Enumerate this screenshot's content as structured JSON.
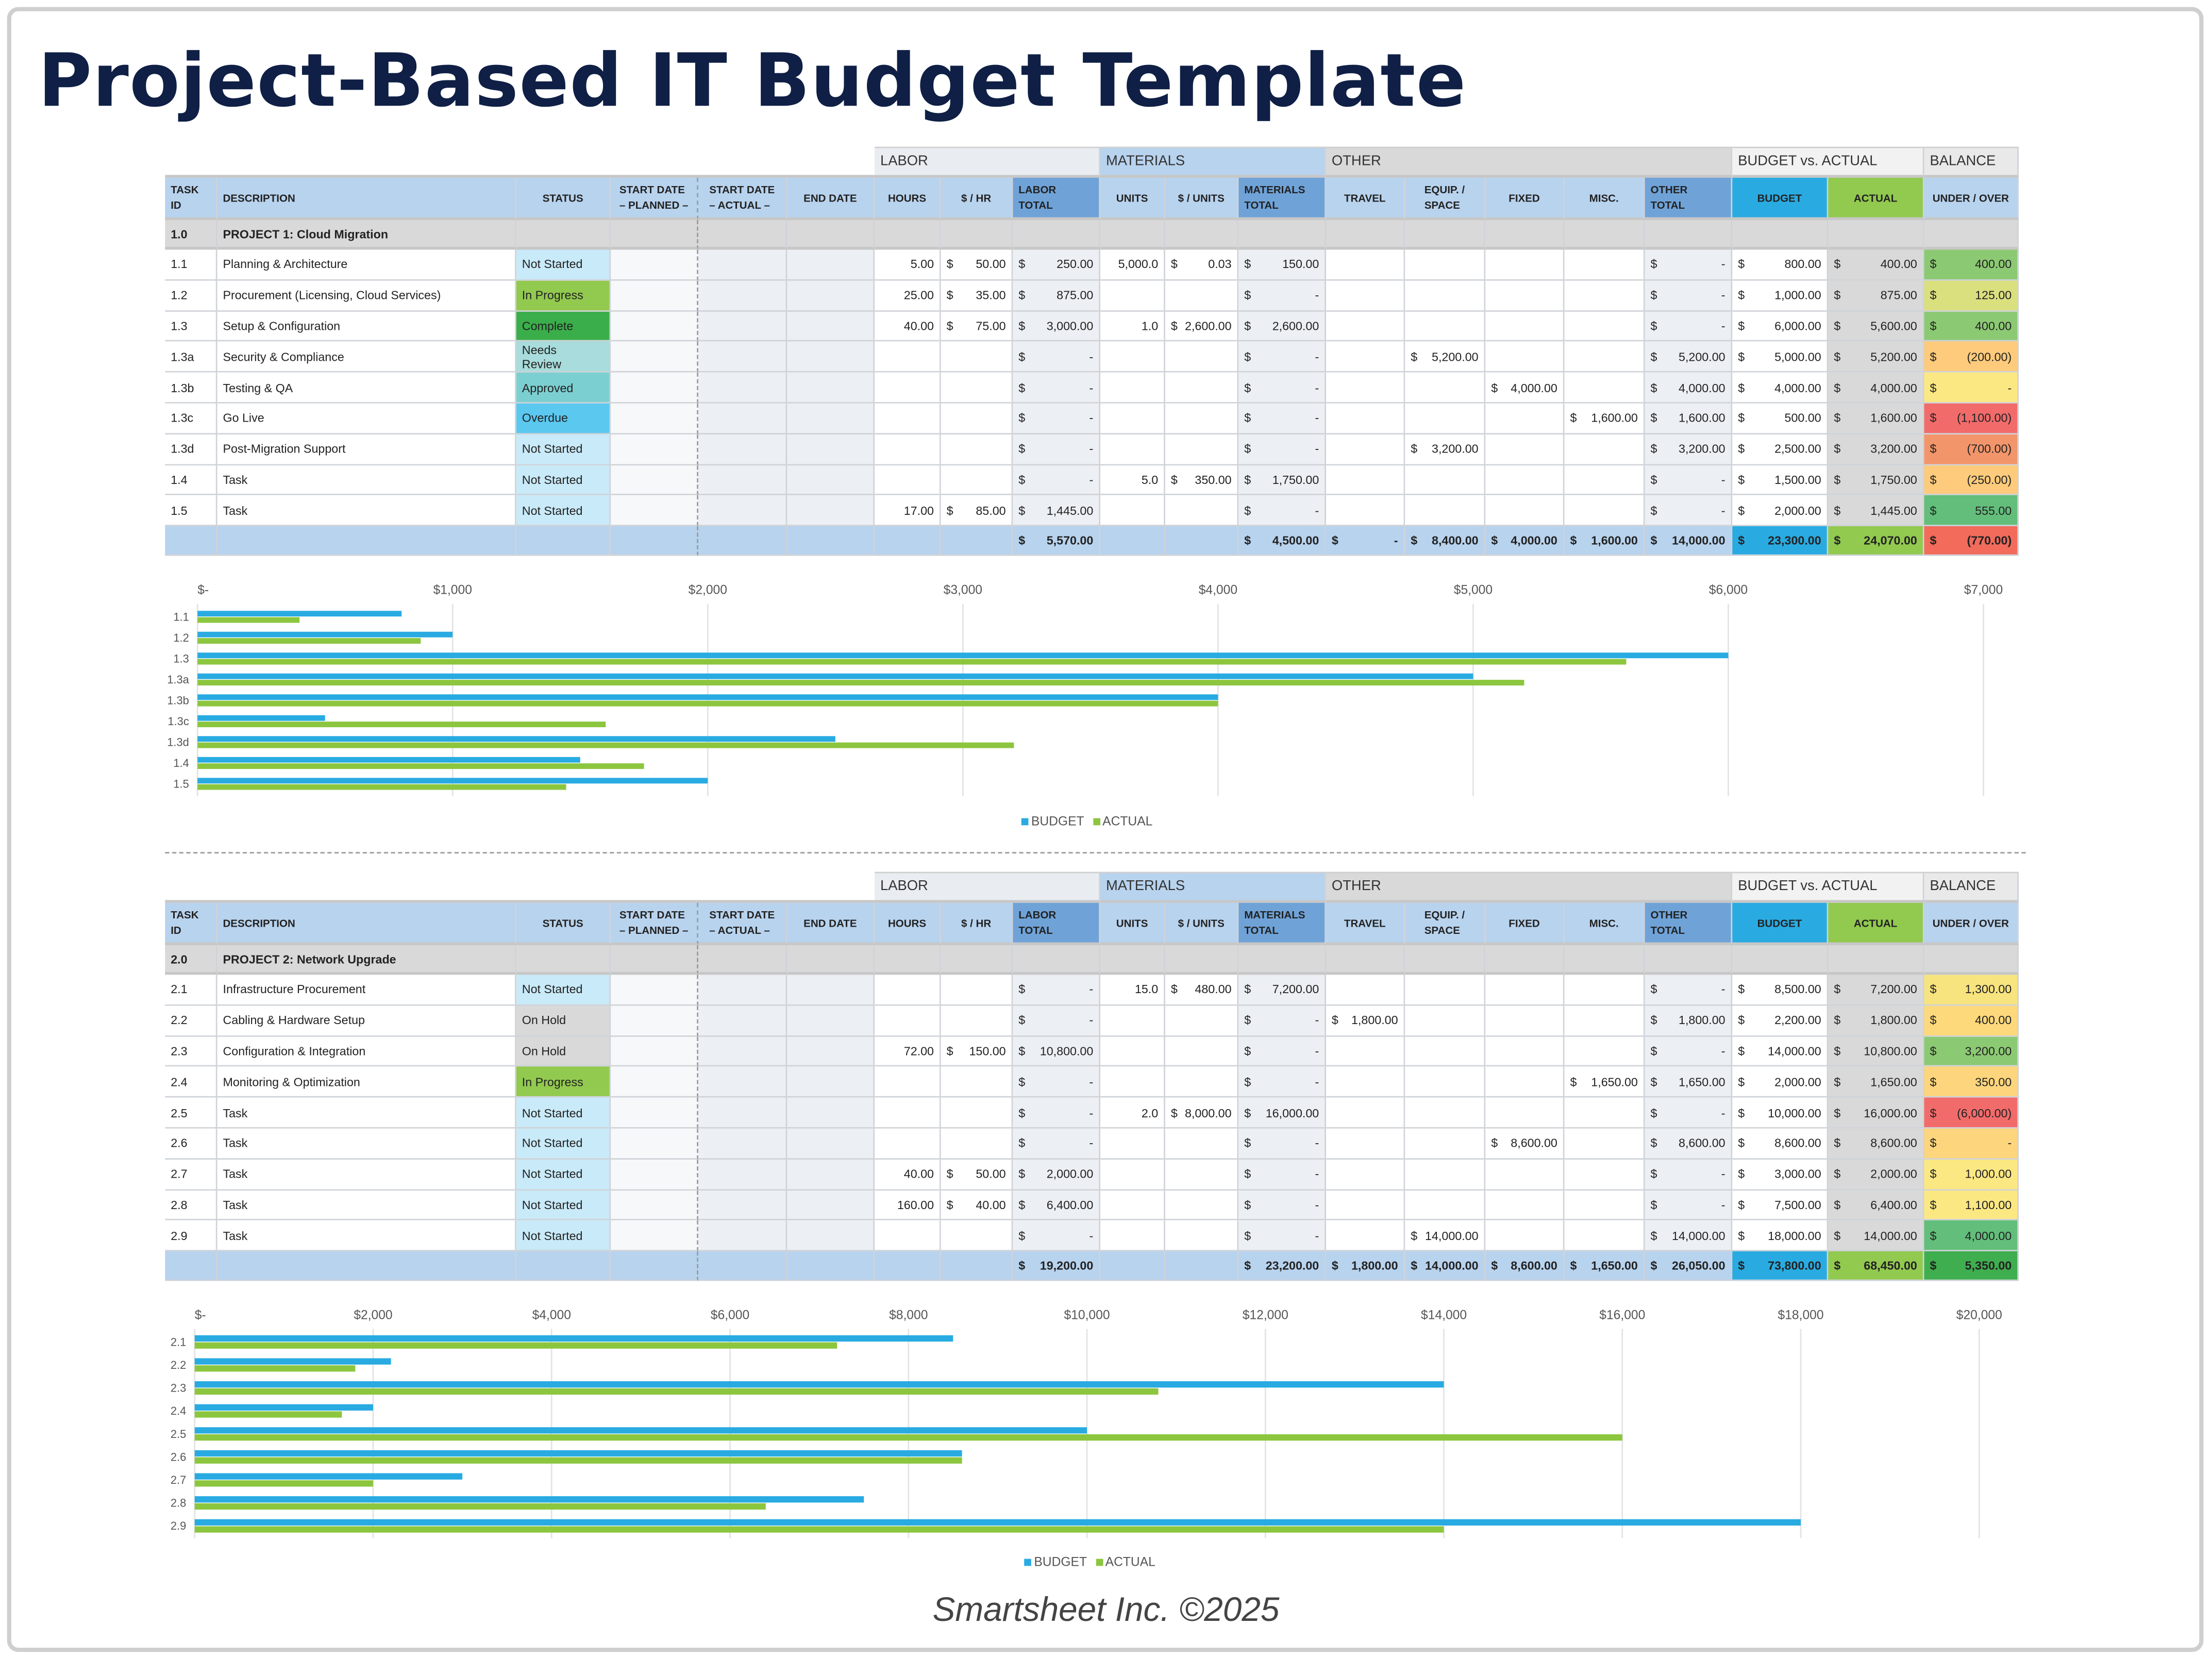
{
  "title": "Project-Based IT Budget Template",
  "footer": "Smartsheet Inc. ©2025",
  "groups": [
    {
      "label": "LABOR",
      "span": [
        6,
        9
      ],
      "color": "#e9edf2"
    },
    {
      "label": "MATERIALS",
      "span": [
        9,
        12
      ],
      "color": "#b8d3ee"
    },
    {
      "label": "OTHER",
      "span": [
        12,
        17
      ],
      "color": "#d9d9d9"
    },
    {
      "label": "BUDGET vs. ACTUAL",
      "span": [
        17,
        19
      ],
      "color": "#f2f2f2"
    },
    {
      "label": "BALANCE",
      "span": [
        19,
        20
      ],
      "color": "#e9e9e9"
    }
  ],
  "columns": [
    "TASK\nID",
    "DESCRIPTION",
    "STATUS",
    "START DATE\n– PLANNED –",
    "START DATE\n– ACTUAL –",
    "END DATE",
    "HOURS",
    "$ / HR",
    "LABOR\nTOTAL",
    "UNITS",
    "$ / UNITS",
    "MATERIALS\nTOTAL",
    "TRAVEL",
    "EQUIP. /\nSPACE",
    "FIXED",
    "MISC.",
    "OTHER\nTOTAL",
    "BUDGET",
    "ACTUAL",
    "UNDER / OVER"
  ],
  "colors": {
    "header": "#b8d3ee",
    "total_header": "#6fa3d8",
    "budget": "#29abe2",
    "actual": "#92c94f",
    "status": {
      "Not Started": "#c9eaf8",
      "In Progress": "#92c94f",
      "Complete": "#3aae4a",
      "Needs Review": "#a9dcdc",
      "Approved": "#7ccfd1",
      "Overdue": "#5bc8f0",
      "On Hold": "#d9d9d9"
    }
  },
  "projects": [
    {
      "id": "1.0",
      "name": "PROJECT 1: Cloud Migration",
      "rows": [
        [
          "1.1",
          "Planning & Architecture",
          "Not Started",
          "",
          "",
          "",
          "5.00",
          "50.00",
          "250.00",
          "5,000.0",
          "0.03",
          "150.00",
          "",
          "",
          "",
          "",
          "-",
          "800.00",
          "400.00",
          "400.00"
        ],
        [
          "1.2",
          "Procurement (Licensing, Cloud Services)",
          "In Progress",
          "",
          "",
          "",
          "25.00",
          "35.00",
          "875.00",
          "",
          "",
          "-",
          "",
          "",
          "",
          "",
          "-",
          "1,000.00",
          "875.00",
          "125.00"
        ],
        [
          "1.3",
          "Setup & Configuration",
          "Complete",
          "",
          "",
          "",
          "40.00",
          "75.00",
          "3,000.00",
          "1.0",
          "2,600.00",
          "2,600.00",
          "",
          "",
          "",
          "",
          "-",
          "6,000.00",
          "5,600.00",
          "400.00"
        ],
        [
          "1.3a",
          "Security & Compliance",
          "Needs Review",
          "",
          "",
          "",
          "",
          "",
          "-",
          "",
          "",
          "-",
          "",
          "5,200.00",
          "",
          "",
          "5,200.00",
          "5,000.00",
          "5,200.00",
          "(200.00)"
        ],
        [
          "1.3b",
          "Testing & QA",
          "Approved",
          "",
          "",
          "",
          "",
          "",
          "-",
          "",
          "",
          "-",
          "",
          "",
          "4,000.00",
          "",
          "4,000.00",
          "4,000.00",
          "4,000.00",
          "-"
        ],
        [
          "1.3c",
          "Go Live",
          "Overdue",
          "",
          "",
          "",
          "",
          "",
          "-",
          "",
          "",
          "-",
          "",
          "",
          "",
          "1,600.00",
          "1,600.00",
          "500.00",
          "1,600.00",
          "(1,100.00)"
        ],
        [
          "1.3d",
          "Post-Migration Support",
          "Not Started",
          "",
          "",
          "",
          "",
          "",
          "-",
          "",
          "",
          "-",
          "",
          "3,200.00",
          "",
          "",
          "3,200.00",
          "2,500.00",
          "3,200.00",
          "(700.00)"
        ],
        [
          "1.4",
          "Task",
          "Not Started",
          "",
          "",
          "",
          "",
          "",
          "-",
          "5.0",
          "350.00",
          "1,750.00",
          "",
          "",
          "",
          "",
          "-",
          "1,500.00",
          "1,750.00",
          "(250.00)"
        ],
        [
          "1.5",
          "Task",
          "Not Started",
          "",
          "",
          "",
          "17.00",
          "85.00",
          "1,445.00",
          "",
          "",
          "-",
          "",
          "",
          "",
          "",
          "-",
          "2,000.00",
          "1,445.00",
          "555.00"
        ]
      ],
      "balance_colors": [
        "#8cc973",
        "#dbe07f",
        "#8cc973",
        "#fdcb7b",
        "#fce883",
        "#f26b6b",
        "#f3956b",
        "#fdcb7b",
        "#63be7b"
      ],
      "totals": [
        "",
        "",
        "",
        "",
        "",
        "",
        "",
        "",
        "5,570.00",
        "",
        "",
        "4,500.00",
        "-",
        "8,400.00",
        "4,000.00",
        "1,600.00",
        "14,000.00",
        "23,300.00",
        "24,070.00",
        "(770.00)"
      ],
      "total_balance_color": "#f26b5b"
    },
    {
      "id": "2.0",
      "name": "PROJECT 2: Network Upgrade",
      "rows": [
        [
          "2.1",
          "Infrastructure Procurement",
          "Not Started",
          "",
          "",
          "",
          "",
          "",
          "-",
          "15.0",
          "480.00",
          "7,200.00",
          "",
          "",
          "",
          "",
          "-",
          "8,500.00",
          "7,200.00",
          "1,300.00"
        ],
        [
          "2.2",
          "Cabling & Hardware Setup",
          "On Hold",
          "",
          "",
          "",
          "",
          "",
          "-",
          "",
          "",
          "-",
          "1,800.00",
          "",
          "",
          "",
          "1,800.00",
          "2,200.00",
          "1,800.00",
          "400.00"
        ],
        [
          "2.3",
          "Configuration & Integration",
          "On Hold",
          "",
          "",
          "",
          "72.00",
          "150.00",
          "10,800.00",
          "",
          "",
          "-",
          "",
          "",
          "",
          "",
          "-",
          "14,000.00",
          "10,800.00",
          "3,200.00"
        ],
        [
          "2.4",
          "Monitoring & Optimization",
          "In Progress",
          "",
          "",
          "",
          "",
          "",
          "-",
          "",
          "",
          "-",
          "",
          "",
          "",
          "1,650.00",
          "1,650.00",
          "2,000.00",
          "1,650.00",
          "350.00"
        ],
        [
          "2.5",
          "Task",
          "Not Started",
          "",
          "",
          "",
          "",
          "",
          "-",
          "2.0",
          "8,000.00",
          "16,000.00",
          "",
          "",
          "",
          "",
          "-",
          "10,000.00",
          "16,000.00",
          "(6,000.00)"
        ],
        [
          "2.6",
          "Task",
          "Not Started",
          "",
          "",
          "",
          "",
          "",
          "-",
          "",
          "",
          "-",
          "",
          "",
          "8,600.00",
          "",
          "8,600.00",
          "8,600.00",
          "8,600.00",
          "-"
        ],
        [
          "2.7",
          "Task",
          "Not Started",
          "",
          "",
          "",
          "40.00",
          "50.00",
          "2,000.00",
          "",
          "",
          "-",
          "",
          "",
          "",
          "",
          "-",
          "3,000.00",
          "2,000.00",
          "1,000.00"
        ],
        [
          "2.8",
          "Task",
          "Not Started",
          "",
          "",
          "",
          "160.00",
          "40.00",
          "6,400.00",
          "",
          "",
          "-",
          "",
          "",
          "",
          "",
          "-",
          "7,500.00",
          "6,400.00",
          "1,100.00"
        ],
        [
          "2.9",
          "Task",
          "Not Started",
          "",
          "",
          "",
          "",
          "",
          "-",
          "",
          "",
          "-",
          "",
          "14,000.00",
          "",
          "",
          "14,000.00",
          "18,000.00",
          "14,000.00",
          "4,000.00"
        ]
      ],
      "balance_colors": [
        "#f7e47f",
        "#fdd97c",
        "#8cc973",
        "#fdd57c",
        "#f26b6b",
        "#fdd57c",
        "#fce883",
        "#fce883",
        "#63be7b"
      ],
      "totals": [
        "",
        "",
        "",
        "",
        "",
        "",
        "",
        "",
        "19,200.00",
        "",
        "",
        "23,200.00",
        "1,800.00",
        "14,000.00",
        "8,600.00",
        "1,650.00",
        "26,050.00",
        "73,800.00",
        "68,450.00",
        "5,350.00"
      ],
      "total_balance_color": "#3fae4f"
    }
  ],
  "chart_data": [
    {
      "type": "bar",
      "orientation": "horizontal",
      "categories": [
        "1.1",
        "1.2",
        "1.3",
        "1.3a",
        "1.3b",
        "1.3c",
        "1.3d",
        "1.4",
        "1.5"
      ],
      "series": [
        {
          "name": "BUDGET",
          "color": "#29abe2",
          "values": [
            800,
            1000,
            6000,
            5000,
            4000,
            500,
            2500,
            1500,
            2000
          ]
        },
        {
          "name": "ACTUAL",
          "color": "#8cc63f",
          "values": [
            400,
            875,
            5600,
            5200,
            4000,
            1600,
            3200,
            1750,
            1445
          ]
        }
      ],
      "xlim": [
        0,
        7000
      ],
      "xticks": [
        "$-",
        "$1,000",
        "$2,000",
        "$3,000",
        "$4,000",
        "$5,000",
        "$6,000",
        "$7,000"
      ],
      "grid": true,
      "legend": "bottom"
    },
    {
      "type": "bar",
      "orientation": "horizontal",
      "categories": [
        "2.1",
        "2.2",
        "2.3",
        "2.4",
        "2.5",
        "2.6",
        "2.7",
        "2.8",
        "2.9"
      ],
      "series": [
        {
          "name": "BUDGET",
          "color": "#29abe2",
          "values": [
            8500,
            2200,
            14000,
            2000,
            10000,
            8600,
            3000,
            7500,
            18000
          ]
        },
        {
          "name": "ACTUAL",
          "color": "#8cc63f",
          "values": [
            7200,
            1800,
            10800,
            1650,
            16000,
            8600,
            2000,
            6400,
            14000
          ]
        }
      ],
      "xlim": [
        0,
        20000
      ],
      "xticks": [
        "$-",
        "$2,000",
        "$4,000",
        "$6,000",
        "$8,000",
        "$10,000",
        "$12,000",
        "$14,000",
        "$16,000",
        "$18,000",
        "$20,000"
      ],
      "grid": true,
      "legend": "bottom"
    }
  ]
}
